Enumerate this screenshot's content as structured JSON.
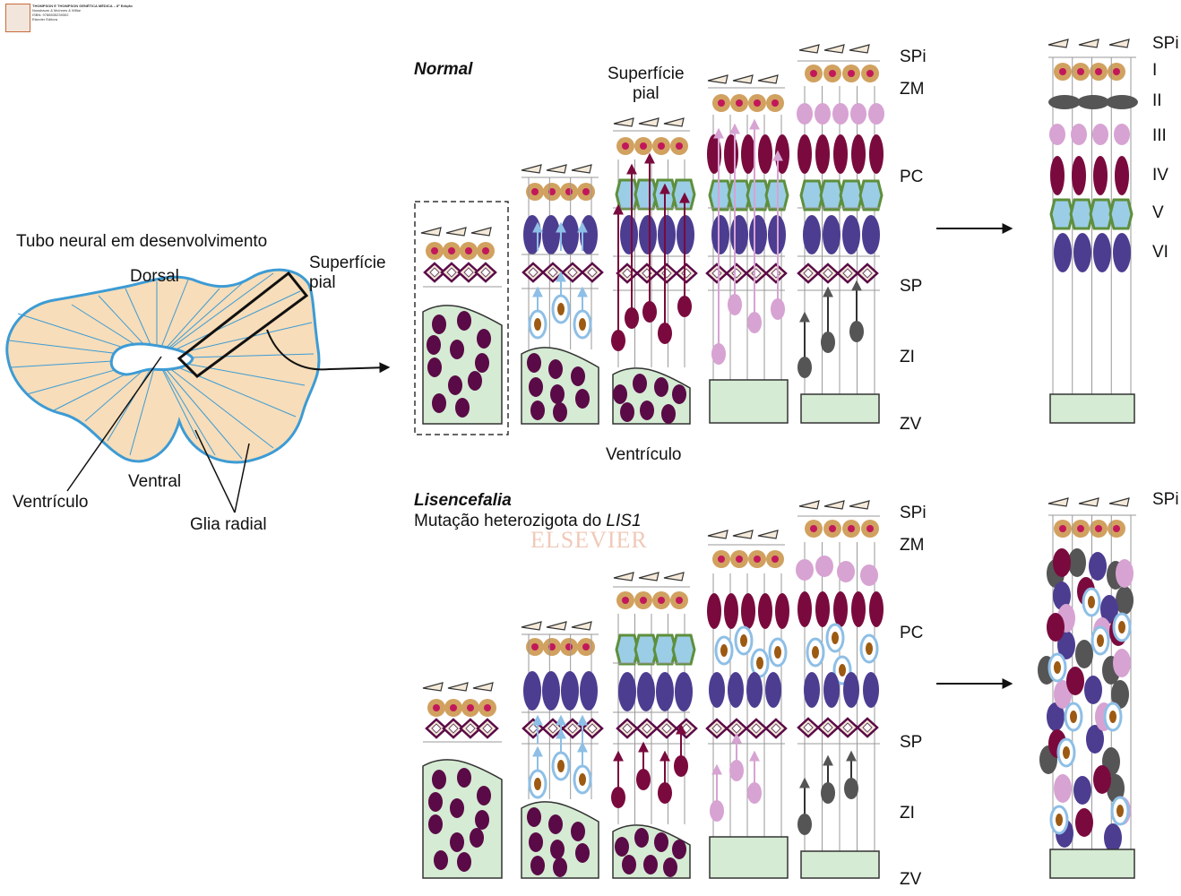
{
  "header": {
    "lines": [
      "THOMPSON E THOMPSON GENÉTICA MÉDICA – 8ª Edição",
      "Nussbaum & McInnes & Willar",
      "ISBN: 9788535239302",
      "Elsevier Editora"
    ],
    "logo_text": "ELSEVIER"
  },
  "watermark": "ELSEVIER",
  "neural_tube": {
    "title": "Tubo neural em desenvolvimento",
    "dorsal": "Dorsal",
    "ventral": "Ventral",
    "ventricle": "Ventrículo",
    "radial_glia": "Glia radial",
    "pial_surface": "Superfície\npial"
  },
  "normal": {
    "title": "Normal",
    "pial_surface": "Superfície\npial",
    "ventricle": "Ventrículo"
  },
  "lissencephaly": {
    "title": "Lisencefalia",
    "subtitle_prefix": "Mutação heterozigota do ",
    "subtitle_gene": "LIS1"
  },
  "zones": [
    "SPi",
    "ZM",
    "PC",
    "SP",
    "ZI",
    "ZV"
  ],
  "layers": [
    "SPi",
    "I",
    "II",
    "III",
    "IV",
    "V",
    "VI"
  ],
  "colors": {
    "neuroepithelium": "#d5ebd3",
    "tube_fill": "#f7ddb9",
    "tube_border": "#3d9bd4",
    "dark_purple": "#5a0a47",
    "maroon": "#7a0a3d",
    "violet": "#4c3d91",
    "pink": "#d7a3d3",
    "grey": "#555555",
    "hex_fill": "#9bcde6",
    "hex_stroke": "#5e8f3c",
    "cr_cell": "#d1a15f",
    "cr_nucleus": "#c2185b",
    "pial_cell": "#f5ead9",
    "light_blue": "#8ebfe6",
    "brown": "#9c5a12"
  }
}
